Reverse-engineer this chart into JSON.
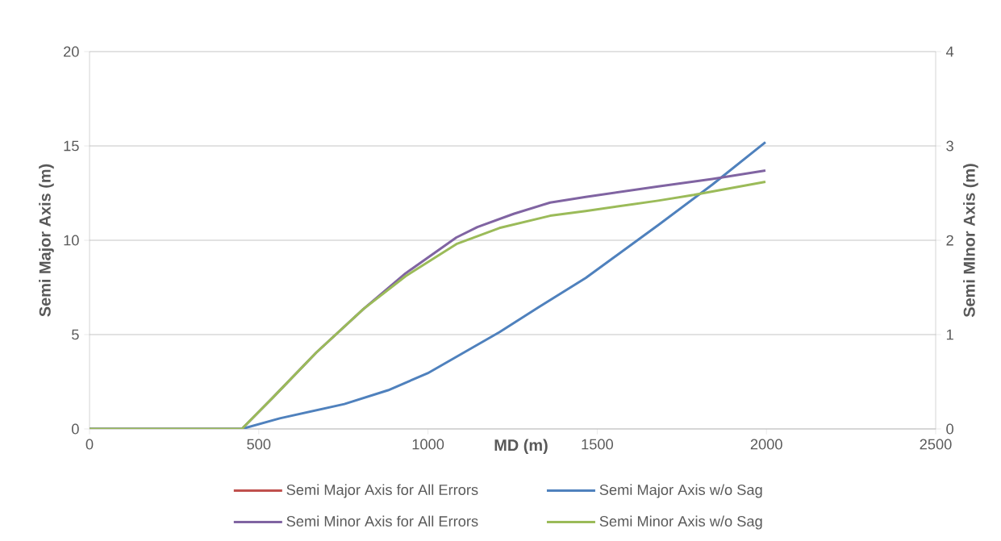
{
  "chart_data": {
    "type": "line",
    "xlabel": "MD (m)",
    "ylabel": "Semi Major Axis (m)",
    "y2label": "Semi MInor Axis (m)",
    "xlim": [
      0,
      2500
    ],
    "xticks": [
      0,
      500,
      1000,
      1500,
      2000,
      2500
    ],
    "ylim": [
      0,
      20
    ],
    "yticks": [
      0,
      5,
      10,
      15,
      20
    ],
    "y2lim": [
      0,
      4
    ],
    "y2ticks": [
      0,
      1,
      2,
      3,
      4
    ],
    "grid": "y",
    "legend": "bottom",
    "line_style": "solid",
    "series": [
      {
        "name": "Semi Major Axis for All Errors",
        "color": "#c0504d",
        "values": [
          null,
          null,
          null,
          null,
          null,
          null,
          null,
          null,
          null,
          null,
          null,
          null
        ]
      },
      {
        "name": "Semi Major Axis w/o Sag",
        "color": "#4f81bd",
        "x": [
          0,
          450,
          562,
          753,
          882,
          999,
          1211,
          1327,
          1466,
          1680,
          1840,
          1997
        ],
        "values": [
          0,
          0,
          0.56,
          1.32,
          2.05,
          2.95,
          5.13,
          6.45,
          8.0,
          10.8,
          12.95,
          15.2
        ]
      },
      {
        "name": "Semi Minor Axis for All Errors",
        "color": "#8064a2",
        "axis": "y2",
        "x": [
          0,
          450,
          541,
          670,
          809,
          934,
          1084,
          1146,
          1253,
          1361,
          1466,
          1680,
          1840,
          1997
        ],
        "values": [
          0,
          0,
          0.33,
          0.81,
          1.27,
          1.65,
          2.03,
          2.14,
          2.28,
          2.4,
          2.46,
          2.57,
          2.65,
          2.74
        ]
      },
      {
        "name": "Semi Minor Axis w/o Sag",
        "color": "#9bbb59",
        "axis": "y2",
        "x": [
          0,
          450,
          541,
          670,
          809,
          934,
          1084,
          1211,
          1361,
          1466,
          1680,
          1785,
          1997
        ],
        "values": [
          0,
          0,
          0.33,
          0.81,
          1.27,
          1.62,
          1.96,
          2.13,
          2.26,
          2.31,
          2.42,
          2.48,
          2.62
        ]
      }
    ]
  }
}
